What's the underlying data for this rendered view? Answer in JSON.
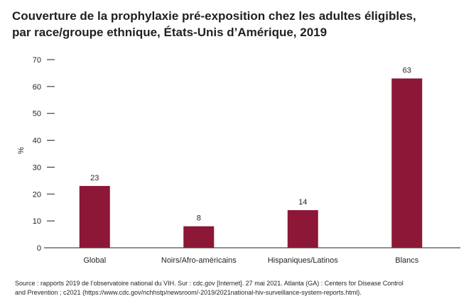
{
  "title_lines": [
    "Couverture de la prophylaxie pré-exposition chez les adultes éligibles,",
    "par race/groupe ethnique, États-Unis d’Amérique, 2019"
  ],
  "source_lines": [
    "Source : rapports 2019 de l’observatoire national du VIH. Sur : cdc.gov [Internet]. 27 mai 2021. Atlanta (GA) : Centers for Disease Control",
    "and Prevention ; c2021 (https://www.cdc.gov/nchhstp/newsroom/-2019/2021national-hiv-surveillance-system-reports.html)."
  ],
  "colors": {
    "bar": "#8c1737",
    "text": "#231f20",
    "axis": "#231f20"
  },
  "chart_data": {
    "type": "bar",
    "title": "Couverture de la prophylaxie pré-exposition chez les adultes éligibles, par race/groupe ethnique, États-Unis d’Amérique, 2019",
    "categories": [
      "Global",
      "Noirs/Afro-américains",
      "Hispaniques/Latinos",
      "Blancs"
    ],
    "values": [
      23,
      8,
      14,
      63
    ],
    "data_labels": [
      "23",
      "8",
      "14",
      "63"
    ],
    "xlabel": "",
    "ylabel": "%",
    "ylim": [
      0,
      70
    ],
    "yticks": [
      0,
      10,
      20,
      30,
      40,
      50,
      60,
      70
    ],
    "ytick_labels": [
      "0",
      "10",
      "20",
      "30",
      "40",
      "50",
      "60",
      "70"
    ],
    "grid": false
  }
}
